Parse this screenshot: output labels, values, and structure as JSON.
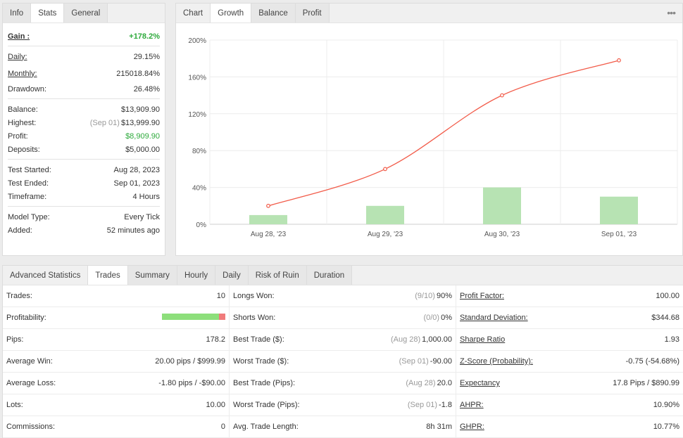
{
  "stats_panel": {
    "tabs": [
      {
        "label": "Info",
        "active": false
      },
      {
        "label": "Stats",
        "active": true
      },
      {
        "label": "General",
        "active": false
      }
    ],
    "gain": {
      "label": "Gain :",
      "value": "+178.2%"
    },
    "daily": {
      "label": "Daily:",
      "value": "29.15%"
    },
    "monthly": {
      "label": "Monthly:",
      "value": "215018.84%"
    },
    "drawdown": {
      "label": "Drawdown:",
      "value": "26.48%"
    },
    "balance": {
      "label": "Balance:",
      "value": "$13,909.90"
    },
    "highest": {
      "label": "Highest:",
      "date": "(Sep 01)",
      "value": "$13,999.90"
    },
    "profit": {
      "label": "Profit:",
      "value": "$8,909.90"
    },
    "deposits": {
      "label": "Deposits:",
      "value": "$5,000.00"
    },
    "test_started": {
      "label": "Test Started:",
      "value": "Aug 28, 2023"
    },
    "test_ended": {
      "label": "Test Ended:",
      "value": "Sep 01, 2023"
    },
    "timeframe": {
      "label": "Timeframe:",
      "value": "4 Hours"
    },
    "model_type": {
      "label": "Model Type:",
      "value": "Every Tick"
    },
    "added": {
      "label": "Added:",
      "value": "52 minutes ago"
    }
  },
  "chart_panel": {
    "tabs": [
      {
        "label": "Chart",
        "active": false,
        "plain": true
      },
      {
        "label": "Growth",
        "active": true
      },
      {
        "label": "Balance",
        "active": false
      },
      {
        "label": "Profit",
        "active": false
      }
    ],
    "more_icon": "ellipsis-icon"
  },
  "chart_data": {
    "type": "bar",
    "categories": [
      "Aug 28, '23",
      "Aug 29, '23",
      "Aug 30, '23",
      "Sep 01, '23"
    ],
    "series": [
      {
        "type": "bar",
        "values": [
          10,
          20,
          40,
          30
        ],
        "color": "#b7e3b3"
      },
      {
        "type": "line",
        "values": [
          20,
          60,
          140,
          178
        ],
        "color": "#f25c4a"
      }
    ],
    "y_ticks": [
      "0%",
      "40%",
      "80%",
      "120%",
      "160%",
      "200%"
    ],
    "ylim": [
      0,
      200
    ],
    "grid": true
  },
  "advanced": {
    "tabs": [
      {
        "label": "Advanced Statistics",
        "active": false,
        "plain": true
      },
      {
        "label": "Trades",
        "active": true
      },
      {
        "label": "Summary",
        "active": false
      },
      {
        "label": "Hourly",
        "active": false
      },
      {
        "label": "Daily",
        "active": false
      },
      {
        "label": "Risk of Ruin",
        "active": false
      },
      {
        "label": "Duration",
        "active": false
      }
    ],
    "profitability": {
      "win_fraction": 0.9
    },
    "rows": [
      [
        {
          "label": "Trades:",
          "value": "10"
        },
        {
          "label": "Longs Won:",
          "muted": "(9/10)",
          "value": "90%"
        },
        {
          "label": "Profit Factor:",
          "value": "100.00",
          "ul": true
        }
      ],
      [
        {
          "label": "Profitability:",
          "bar": true
        },
        {
          "label": "Shorts Won:",
          "muted": "(0/0)",
          "value": "0%"
        },
        {
          "label": "Standard Deviation:",
          "value": "$344.68",
          "ul": true
        }
      ],
      [
        {
          "label": "Pips:",
          "value": "178.2"
        },
        {
          "label": "Best Trade ($):",
          "muted": "(Aug 28)",
          "value": "1,000.00"
        },
        {
          "label": "Sharpe Ratio",
          "value": "1.93",
          "ul": true
        }
      ],
      [
        {
          "label": "Average Win:",
          "value": "20.00 pips / $999.99"
        },
        {
          "label": "Worst Trade ($):",
          "muted": "(Sep 01)",
          "value": "-90.00"
        },
        {
          "label": "Z-Score (Probability):",
          "value": "-0.75 (-54.68%)",
          "ul": true
        }
      ],
      [
        {
          "label": "Average Loss:",
          "value": "-1.80 pips / -$90.00"
        },
        {
          "label": "Best Trade (Pips):",
          "muted": "(Aug 28)",
          "value": "20.0"
        },
        {
          "label": "Expectancy",
          "value": "17.8 Pips / $890.99",
          "ul": true
        }
      ],
      [
        {
          "label": "Lots:",
          "value": "10.00"
        },
        {
          "label": "Worst Trade (Pips):",
          "muted": "(Sep 01)",
          "value": "-1.8"
        },
        {
          "label": "AHPR:",
          "value": "10.90%",
          "ul": true
        }
      ],
      [
        {
          "label": "Commissions:",
          "value": "0"
        },
        {
          "label": "Avg. Trade Length:",
          "value": "8h 31m"
        },
        {
          "label": "GHPR:",
          "value": "10.77%",
          "ul": true
        }
      ]
    ]
  }
}
